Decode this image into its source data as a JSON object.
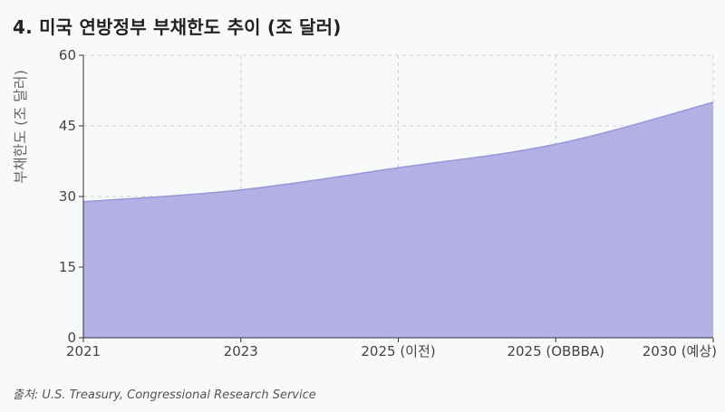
{
  "title": "4. 미국 연방정부 부채한도 추이 (조 달러)",
  "source": "출처: U.S. Treasury, Congressional Research Service",
  "chart_data": {
    "type": "area",
    "categories": [
      "2021",
      "2023",
      "2025 (이전)",
      "2025 (OBBBA)",
      "2030 (예상)"
    ],
    "values": [
      28.9,
      31.4,
      36.1,
      41.1,
      50.0
    ],
    "yticks": [
      0,
      15,
      30,
      45,
      60
    ],
    "ylim": [
      0,
      60
    ],
    "ylabel": "부채한도 (조 달러)",
    "xlabel": "",
    "grid": true,
    "fill_color": "#b3b0e6",
    "line_color": "#9a96d8"
  }
}
